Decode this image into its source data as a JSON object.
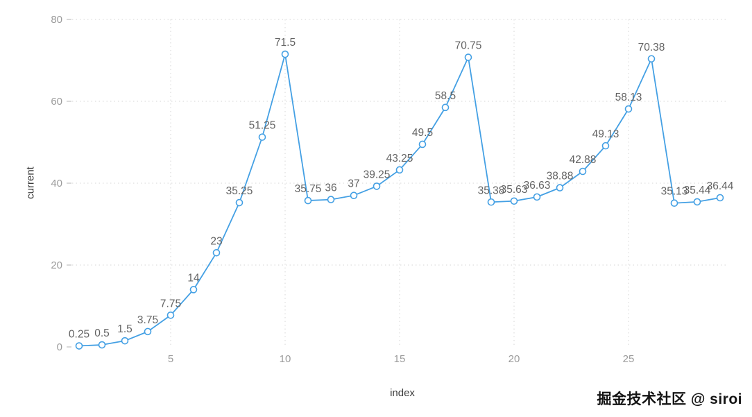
{
  "chart_data": {
    "type": "line",
    "title": "",
    "xlabel": "index",
    "ylabel": "current",
    "x": [
      1,
      2,
      3,
      4,
      5,
      6,
      7,
      8,
      9,
      10,
      11,
      12,
      13,
      14,
      15,
      16,
      17,
      18,
      19,
      20,
      21,
      22,
      23,
      24,
      25,
      26,
      27,
      28,
      29
    ],
    "values": [
      0.25,
      0.5,
      1.5,
      3.75,
      7.75,
      14,
      23,
      35.25,
      51.25,
      71.5,
      35.75,
      36,
      37,
      39.25,
      43.25,
      49.5,
      58.5,
      70.75,
      35.38,
      35.63,
      36.63,
      38.88,
      42.88,
      49.13,
      58.13,
      70.38,
      35.13,
      35.44,
      36.44
    ],
    "point_labels": [
      "0.25",
      "0.5",
      "1.5",
      "3.75",
      "7.75",
      "14",
      "23",
      "35.25",
      "51.25",
      "71.5",
      "35.75",
      "36",
      "37",
      "39.25",
      "43.25",
      "49.5",
      "58.5",
      "70.75",
      "35.38",
      "35.63",
      "36.63",
      "38.88",
      "42.88",
      "49.13",
      "58.13",
      "70.38",
      "35.13",
      "35.44",
      "36.44"
    ],
    "xticks": [
      5,
      10,
      15,
      20,
      25
    ],
    "yticks": [
      0,
      20,
      40,
      60,
      80
    ],
    "xlim": [
      1,
      29
    ],
    "ylim": [
      0,
      80
    ],
    "grid": "dotted",
    "legend": "none",
    "line_color": "#44a0e4",
    "marker_fill": "#ffffff",
    "grid_color": "#d6d6d6",
    "tick_label_color": "#9b9b9b",
    "data_label_color": "#636363"
  },
  "watermark": "掘金技术社区 @ siroi"
}
